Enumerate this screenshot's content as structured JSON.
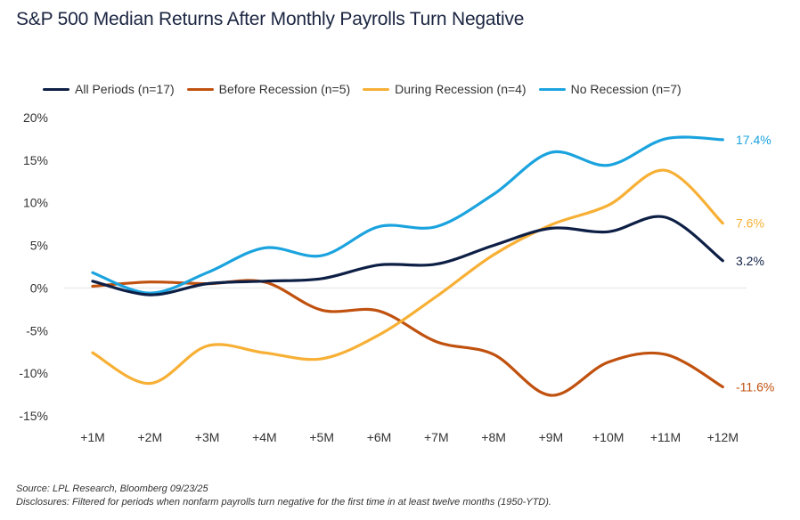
{
  "title": "S&P 500 Median Returns After Monthly Payrolls Turn Negative",
  "footer": {
    "source": "Source: LPL Research, Bloomberg 09/23/25",
    "disclosures": "Disclosures: Filtered for periods when nonfarm payrolls turn negative for the first time in at least twelve months (1950-YTD)."
  },
  "chart_data": {
    "type": "line",
    "categories": [
      "+1M",
      "+2M",
      "+3M",
      "+4M",
      "+5M",
      "+6M",
      "+7M",
      "+8M",
      "+9M",
      "+10M",
      "+11M",
      "+12M"
    ],
    "y_ticks": [
      "20%",
      "15%",
      "10%",
      "5%",
      "0%",
      "-5%",
      "-10%",
      "-15%"
    ],
    "ylim": [
      -15,
      20
    ],
    "grid": "zero-line only",
    "legend_position": "top",
    "series": [
      {
        "name": "All Periods (n=17)",
        "color": "#0d1f45",
        "values": [
          0.8,
          -0.8,
          0.5,
          0.8,
          1.1,
          2.7,
          2.8,
          5.0,
          7.0,
          6.6,
          8.3,
          3.2
        ],
        "end_label": "3.2%"
      },
      {
        "name": "Before Recession (n=5)",
        "color": "#c0510f",
        "values": [
          0.2,
          0.7,
          0.5,
          0.7,
          -2.6,
          -2.7,
          -6.3,
          -7.8,
          -12.6,
          -8.7,
          -7.8,
          -11.6
        ],
        "end_label": "-11.6%"
      },
      {
        "name": "During Recession (n=4)",
        "color": "#f7b035",
        "values": [
          -7.6,
          -11.2,
          -6.8,
          -7.6,
          -8.3,
          -5.5,
          -1.0,
          3.9,
          7.4,
          9.7,
          13.8,
          7.6
        ],
        "end_label": "7.6%"
      },
      {
        "name": "No Recession (n=7)",
        "color": "#1aa3de",
        "values": [
          1.8,
          -0.6,
          1.8,
          4.7,
          3.8,
          7.2,
          7.2,
          11.0,
          15.9,
          14.4,
          17.5,
          17.4
        ],
        "end_label": "17.4%"
      }
    ]
  }
}
